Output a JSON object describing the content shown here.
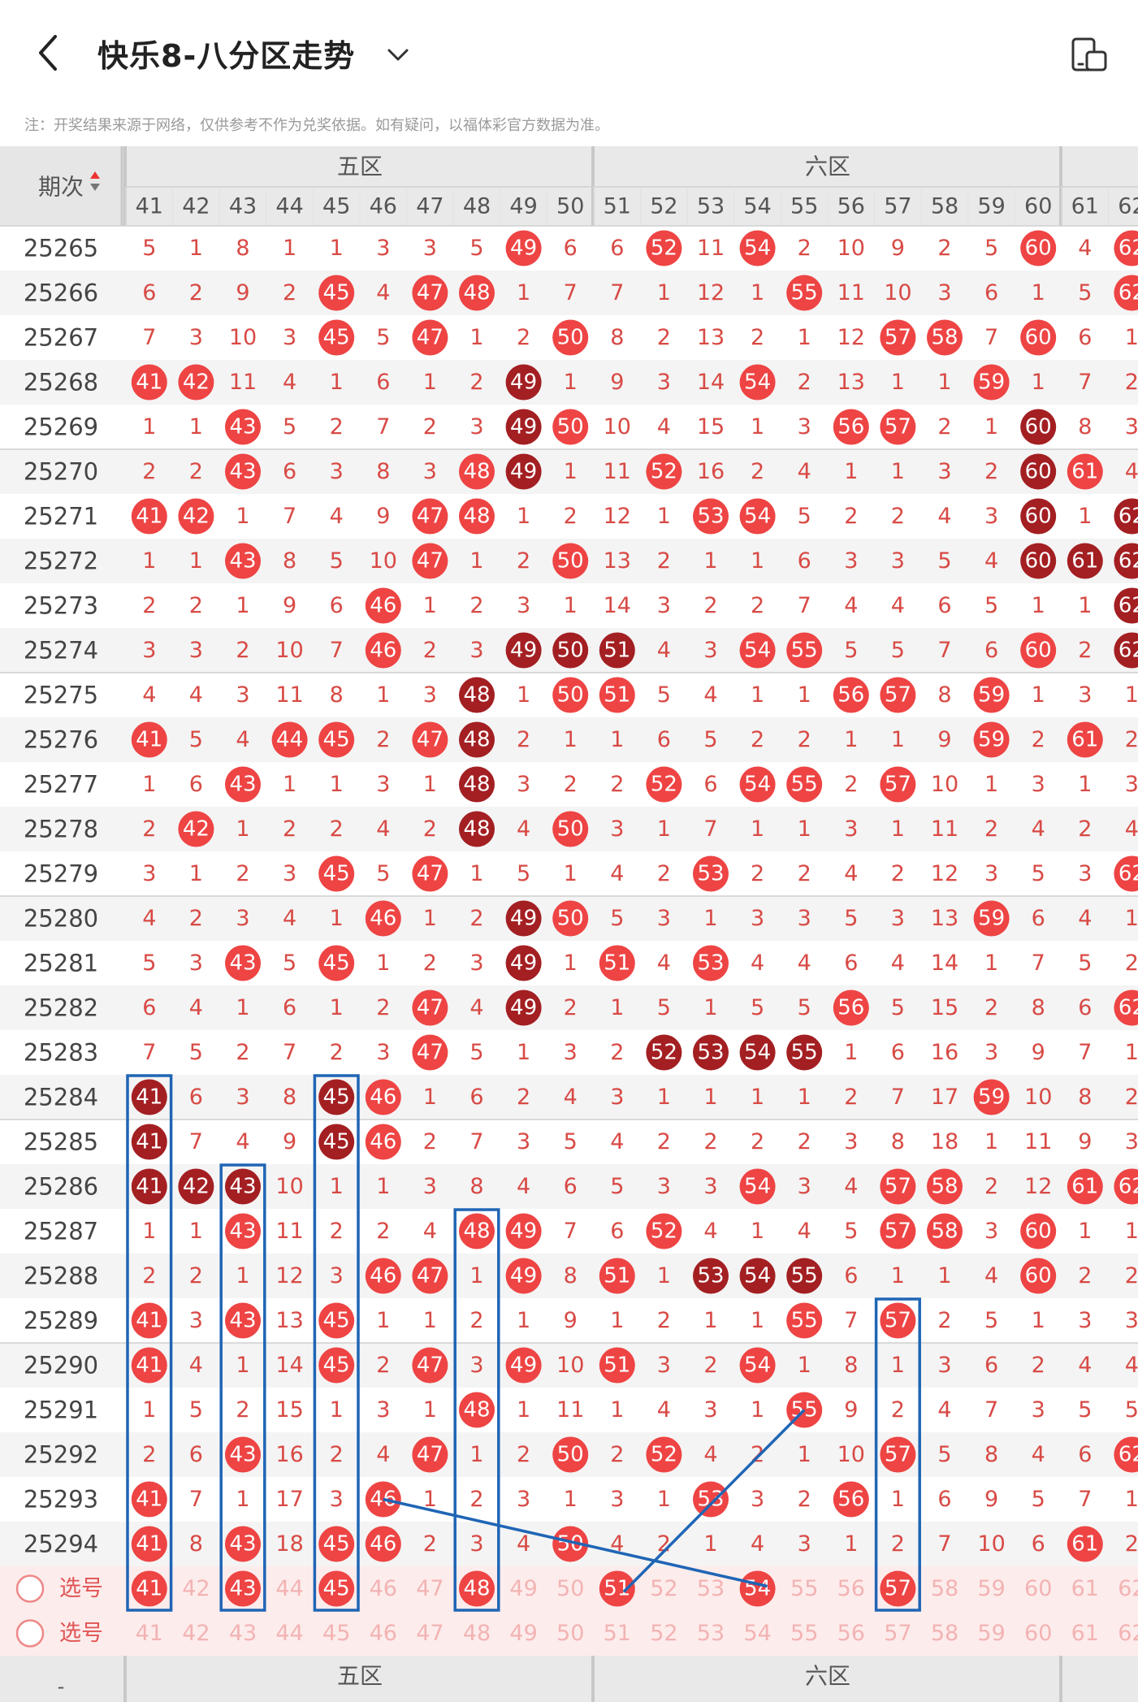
{
  "header": {
    "title": "快乐8-八分区走势",
    "back_icon": "back-arrow-icon",
    "dropdown_icon": "chevron-down-icon",
    "device_icon": "device-switch-icon"
  },
  "note": "注：开奖结果来源于网络，仅供参考不作为兑奖依据。如有疑问，以福体彩官方数据为准。",
  "table": {
    "period_header": "期次",
    "zones": [
      {
        "name": "五区",
        "start": 41
      },
      {
        "name": "六区",
        "start": 51
      },
      {
        "name": "",
        "start": 61
      }
    ],
    "numbers": [
      41,
      42,
      43,
      44,
      45,
      46,
      47,
      48,
      49,
      50,
      51,
      52,
      53,
      54,
      55,
      56,
      57,
      58,
      59,
      60,
      61,
      62
    ],
    "colors": {
      "hit": "#ee4444",
      "hit_dark": "#a31f22",
      "miss_text": "#d84a45",
      "period_text": "#444444",
      "shaded_row": "#f3e6e6",
      "select_row": "#fdecec"
    },
    "rows": [
      {
        "period": "25265",
        "cells": [
          "5",
          "1",
          "8",
          "1",
          "1",
          "3",
          "3",
          "5",
          "*49",
          "6",
          "6",
          "*52",
          "11",
          "*54",
          "2",
          "10",
          "9",
          "2",
          "5",
          "*60",
          "4",
          "*62"
        ]
      },
      {
        "period": "25266",
        "cells": [
          "6",
          "2",
          "9",
          "2",
          "*45",
          "4",
          "*47",
          "*48",
          "1",
          "7",
          "7",
          "1",
          "12",
          "1",
          "*55",
          "11",
          "10",
          "3",
          "6",
          "1",
          "5",
          "*62"
        ]
      },
      {
        "period": "25267",
        "cells": [
          "7",
          "3",
          "10",
          "3",
          "*45",
          "5",
          "*47",
          "1",
          "2",
          "*50",
          "8",
          "2",
          "13",
          "2",
          "1",
          "12",
          "*57",
          "*58",
          "7",
          "*60",
          "6",
          "1"
        ]
      },
      {
        "period": "25268",
        "cells": [
          "*41",
          "*42",
          "11",
          "4",
          "1",
          "6",
          "1",
          "2",
          "#49",
          "1",
          "9",
          "3",
          "14",
          "*54",
          "2",
          "13",
          "1",
          "1",
          "*59",
          "1",
          "7",
          "2"
        ]
      },
      {
        "period": "25269",
        "cells": [
          "1",
          "1",
          "*43",
          "5",
          "2",
          "7",
          "2",
          "3",
          "#49",
          "*50",
          "10",
          "4",
          "15",
          "1",
          "3",
          "*56",
          "*57",
          "2",
          "1",
          "#60",
          "8",
          "3"
        ]
      },
      {
        "period": "25270",
        "cells": [
          "2",
          "2",
          "*43",
          "6",
          "3",
          "8",
          "3",
          "*48",
          "#49",
          "1",
          "11",
          "*52",
          "16",
          "2",
          "4",
          "1",
          "1",
          "3",
          "2",
          "#60",
          "*61",
          "4"
        ]
      },
      {
        "period": "25271",
        "cells": [
          "*41",
          "*42",
          "1",
          "7",
          "4",
          "9",
          "*47",
          "*48",
          "1",
          "2",
          "12",
          "1",
          "*53",
          "*54",
          "5",
          "2",
          "2",
          "4",
          "3",
          "#60",
          "1",
          "#62"
        ]
      },
      {
        "period": "25272",
        "cells": [
          "1",
          "1",
          "*43",
          "8",
          "5",
          "10",
          "*47",
          "1",
          "2",
          "*50",
          "13",
          "2",
          "1",
          "1",
          "6",
          "3",
          "3",
          "5",
          "4",
          "#60",
          "#61",
          "#62"
        ]
      },
      {
        "period": "25273",
        "cells": [
          "2",
          "2",
          "1",
          "9",
          "6",
          "*46",
          "1",
          "2",
          "3",
          "1",
          "14",
          "3",
          "2",
          "2",
          "7",
          "4",
          "4",
          "6",
          "5",
          "1",
          "1",
          "#62"
        ]
      },
      {
        "period": "25274",
        "cells": [
          "3",
          "3",
          "2",
          "10",
          "7",
          "*46",
          "2",
          "3",
          "#49",
          "#50",
          "#51",
          "4",
          "3",
          "*54",
          "*55",
          "5",
          "5",
          "7",
          "6",
          "*60",
          "2",
          "#62"
        ]
      },
      {
        "period": "25275",
        "cells": [
          "4",
          "4",
          "3",
          "11",
          "8",
          "1",
          "3",
          "#48",
          "1",
          "*50",
          "*51",
          "5",
          "4",
          "1",
          "1",
          "*56",
          "*57",
          "8",
          "*59",
          "1",
          "3",
          "1"
        ]
      },
      {
        "period": "25276",
        "cells": [
          "*41",
          "5",
          "4",
          "*44",
          "*45",
          "2",
          "*47",
          "#48",
          "2",
          "1",
          "1",
          "6",
          "5",
          "2",
          "2",
          "1",
          "1",
          "9",
          "*59",
          "2",
          "*61",
          "2"
        ]
      },
      {
        "period": "25277",
        "cells": [
          "1",
          "6",
          "*43",
          "1",
          "1",
          "3",
          "1",
          "#48",
          "3",
          "2",
          "2",
          "*52",
          "6",
          "*54",
          "*55",
          "2",
          "*57",
          "10",
          "1",
          "3",
          "1",
          "3"
        ]
      },
      {
        "period": "25278",
        "cells": [
          "2",
          "*42",
          "1",
          "2",
          "2",
          "4",
          "2",
          "#48",
          "4",
          "*50",
          "3",
          "1",
          "7",
          "1",
          "1",
          "3",
          "1",
          "11",
          "2",
          "4",
          "2",
          "4"
        ]
      },
      {
        "period": "25279",
        "cells": [
          "3",
          "1",
          "2",
          "3",
          "*45",
          "5",
          "*47",
          "1",
          "5",
          "1",
          "4",
          "2",
          "*53",
          "2",
          "2",
          "4",
          "2",
          "12",
          "3",
          "5",
          "3",
          "*62"
        ]
      },
      {
        "period": "25280",
        "cells": [
          "4",
          "2",
          "3",
          "4",
          "1",
          "*46",
          "1",
          "2",
          "#49",
          "*50",
          "5",
          "3",
          "1",
          "3",
          "3",
          "5",
          "3",
          "13",
          "*59",
          "6",
          "4",
          "1"
        ]
      },
      {
        "period": "25281",
        "cells": [
          "5",
          "3",
          "*43",
          "5",
          "*45",
          "1",
          "2",
          "3",
          "#49",
          "1",
          "*51",
          "4",
          "*53",
          "4",
          "4",
          "6",
          "4",
          "14",
          "1",
          "7",
          "5",
          "2"
        ]
      },
      {
        "period": "25282",
        "cells": [
          "6",
          "4",
          "1",
          "6",
          "1",
          "2",
          "*47",
          "4",
          "#49",
          "2",
          "1",
          "5",
          "1",
          "5",
          "5",
          "*56",
          "5",
          "15",
          "2",
          "8",
          "6",
          "*62"
        ]
      },
      {
        "period": "25283",
        "cells": [
          "7",
          "5",
          "2",
          "7",
          "2",
          "3",
          "*47",
          "5",
          "1",
          "3",
          "2",
          "#52",
          "#53",
          "#54",
          "#55",
          "1",
          "6",
          "16",
          "3",
          "9",
          "7",
          "1"
        ]
      },
      {
        "period": "25284",
        "cells": [
          "#41",
          "6",
          "3",
          "8",
          "#45",
          "*46",
          "1",
          "6",
          "2",
          "4",
          "3",
          "1",
          "1",
          "1",
          "1",
          "2",
          "7",
          "17",
          "*59",
          "10",
          "8",
          "2"
        ]
      },
      {
        "period": "25285",
        "cells": [
          "#41",
          "7",
          "4",
          "9",
          "#45",
          "*46",
          "2",
          "7",
          "3",
          "5",
          "4",
          "2",
          "2",
          "2",
          "2",
          "3",
          "8",
          "18",
          "1",
          "11",
          "9",
          "3"
        ]
      },
      {
        "period": "25286",
        "cells": [
          "#41",
          "#42",
          "#43",
          "10",
          "1",
          "1",
          "3",
          "8",
          "4",
          "6",
          "5",
          "3",
          "3",
          "*54",
          "3",
          "4",
          "*57",
          "*58",
          "2",
          "12",
          "*61",
          "*62"
        ]
      },
      {
        "period": "25287",
        "cells": [
          "1",
          "1",
          "*43",
          "11",
          "2",
          "2",
          "4",
          "*48",
          "*49",
          "7",
          "6",
          "*52",
          "4",
          "1",
          "4",
          "5",
          "*57",
          "*58",
          "3",
          "*60",
          "1",
          "1"
        ]
      },
      {
        "period": "25288",
        "cells": [
          "2",
          "2",
          "1",
          "12",
          "3",
          "*46",
          "*47",
          "1",
          "*49",
          "8",
          "*51",
          "1",
          "#53",
          "#54",
          "#55",
          "6",
          "1",
          "1",
          "4",
          "*60",
          "2",
          "2"
        ]
      },
      {
        "period": "25289",
        "cells": [
          "*41",
          "3",
          "*43",
          "13",
          "*45",
          "1",
          "1",
          "2",
          "1",
          "9",
          "1",
          "2",
          "1",
          "1",
          "*55",
          "7",
          "*57",
          "2",
          "5",
          "1",
          "3",
          "3"
        ]
      },
      {
        "period": "25290",
        "cells": [
          "*41",
          "4",
          "1",
          "14",
          "*45",
          "2",
          "*47",
          "3",
          "*49",
          "10",
          "*51",
          "3",
          "2",
          "*54",
          "1",
          "8",
          "1",
          "3",
          "6",
          "2",
          "4",
          "4"
        ]
      },
      {
        "period": "25291",
        "cells": [
          "1",
          "5",
          "2",
          "15",
          "1",
          "3",
          "1",
          "*48",
          "1",
          "11",
          "1",
          "4",
          "3",
          "1",
          "*55",
          "9",
          "2",
          "4",
          "7",
          "3",
          "5",
          "5"
        ]
      },
      {
        "period": "25292",
        "cells": [
          "2",
          "6",
          "*43",
          "16",
          "2",
          "4",
          "*47",
          "1",
          "2",
          "*50",
          "2",
          "*52",
          "4",
          "2",
          "1",
          "10",
          "*57",
          "5",
          "8",
          "4",
          "6",
          "*62"
        ]
      },
      {
        "period": "25293",
        "cells": [
          "*41",
          "7",
          "1",
          "17",
          "3",
          "*46",
          "1",
          "2",
          "3",
          "1",
          "3",
          "1",
          "*53",
          "3",
          "2",
          "*56",
          "1",
          "6",
          "9",
          "5",
          "7",
          "1"
        ]
      },
      {
        "period": "25294",
        "cells": [
          "*41",
          "8",
          "*43",
          "18",
          "*45",
          "*46",
          "2",
          "3",
          "4",
          "*50",
          "4",
          "2",
          "1",
          "4",
          "3",
          "1",
          "2",
          "7",
          "10",
          "6",
          "*61",
          "2"
        ]
      }
    ],
    "select_rows": [
      {
        "label": "选号",
        "picked": [
          41,
          43,
          45,
          48,
          51,
          54,
          57
        ]
      },
      {
        "label": "选号",
        "picked": []
      }
    ],
    "footer_zones": [
      "五区",
      "六区"
    ],
    "footer_left": "-"
  }
}
